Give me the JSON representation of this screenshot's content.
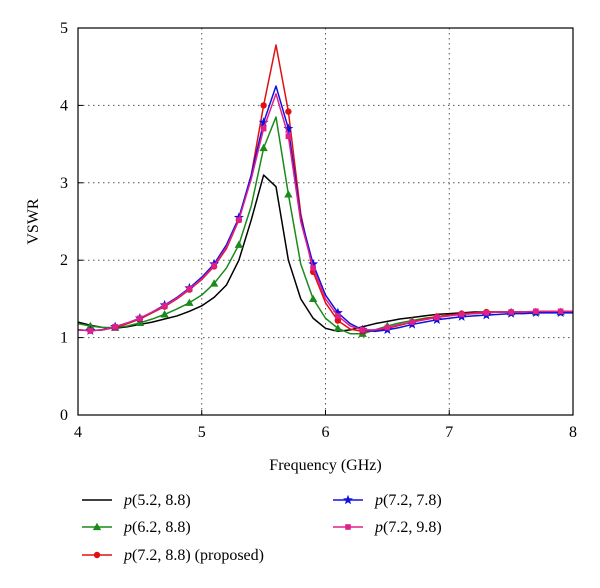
{
  "chart_data": {
    "type": "line",
    "xlabel": "Frequency (GHz)",
    "ylabel": "VSWR",
    "xlim": [
      4,
      8
    ],
    "ylim": [
      0,
      5
    ],
    "x_ticks": [
      4,
      5,
      6,
      7,
      8
    ],
    "y_ticks": [
      0,
      1,
      2,
      3,
      4,
      5
    ],
    "grid": true,
    "legend_position": "bottom",
    "series": [
      {
        "name_prefix": "p",
        "name": "(5.2, 8.8)",
        "color": "#000000",
        "marker": "none",
        "x": [
          4.0,
          4.1,
          4.2,
          4.3,
          4.4,
          4.5,
          4.6,
          4.7,
          4.8,
          4.9,
          5.0,
          5.1,
          5.2,
          5.3,
          5.4,
          5.5,
          5.6,
          5.7,
          5.8,
          5.9,
          6.0,
          6.1,
          6.2,
          6.3,
          6.4,
          6.5,
          6.6,
          6.7,
          6.8,
          6.9,
          7.0,
          7.1,
          7.2,
          7.3,
          7.4,
          7.5,
          7.6,
          7.7,
          7.8,
          7.9,
          8.0
        ],
        "y": [
          1.2,
          1.16,
          1.13,
          1.12,
          1.14,
          1.17,
          1.2,
          1.24,
          1.28,
          1.34,
          1.41,
          1.52,
          1.68,
          2.0,
          2.52,
          3.1,
          2.95,
          2.0,
          1.5,
          1.25,
          1.12,
          1.08,
          1.1,
          1.14,
          1.18,
          1.21,
          1.24,
          1.26,
          1.28,
          1.3,
          1.31,
          1.32,
          1.33,
          1.33,
          1.33,
          1.33,
          1.33,
          1.33,
          1.33,
          1.33,
          1.33
        ]
      },
      {
        "name_prefix": "p",
        "name": "(6.2, 8.8)",
        "color": "#1a8a1a",
        "marker": "triangle",
        "x": [
          4.0,
          4.1,
          4.2,
          4.3,
          4.4,
          4.5,
          4.6,
          4.7,
          4.8,
          4.9,
          5.0,
          5.1,
          5.2,
          5.3,
          5.4,
          5.5,
          5.6,
          5.7,
          5.8,
          5.9,
          6.0,
          6.1,
          6.2,
          6.3,
          6.4,
          6.5,
          6.6,
          6.7,
          6.8,
          6.9,
          7.0,
          7.1,
          7.2,
          7.3,
          7.4,
          7.5,
          7.6,
          7.7,
          7.8,
          7.9,
          8.0
        ],
        "y": [
          1.18,
          1.15,
          1.13,
          1.13,
          1.15,
          1.19,
          1.24,
          1.3,
          1.37,
          1.45,
          1.55,
          1.7,
          1.9,
          2.2,
          2.7,
          3.45,
          3.85,
          2.85,
          1.95,
          1.5,
          1.25,
          1.12,
          1.05,
          1.05,
          1.1,
          1.15,
          1.19,
          1.22,
          1.25,
          1.27,
          1.29,
          1.3,
          1.31,
          1.32,
          1.33,
          1.33,
          1.33,
          1.33,
          1.33,
          1.33,
          1.33
        ]
      },
      {
        "name_prefix": "p",
        "name": "(7.2, 8.8) (proposed)",
        "color": "#e01010",
        "marker": "circle",
        "x": [
          4.0,
          4.1,
          4.2,
          4.3,
          4.4,
          4.5,
          4.6,
          4.7,
          4.8,
          4.9,
          5.0,
          5.1,
          5.2,
          5.3,
          5.4,
          5.5,
          5.6,
          5.7,
          5.8,
          5.9,
          6.0,
          6.1,
          6.2,
          6.3,
          6.4,
          6.5,
          6.6,
          6.7,
          6.8,
          6.9,
          7.0,
          7.1,
          7.2,
          7.3,
          7.4,
          7.5,
          7.6,
          7.7,
          7.8,
          7.9,
          8.0
        ],
        "y": [
          1.1,
          1.09,
          1.1,
          1.13,
          1.18,
          1.24,
          1.32,
          1.4,
          1.5,
          1.62,
          1.75,
          1.92,
          2.15,
          2.52,
          3.1,
          4.0,
          4.78,
          3.92,
          2.6,
          1.85,
          1.45,
          1.22,
          1.11,
          1.08,
          1.09,
          1.12,
          1.16,
          1.2,
          1.24,
          1.27,
          1.29,
          1.31,
          1.32,
          1.33,
          1.33,
          1.33,
          1.33,
          1.33,
          1.33,
          1.33,
          1.33
        ]
      },
      {
        "name_prefix": "p",
        "name": "(7.2, 7.8)",
        "color": "#1010e0",
        "marker": "star",
        "x": [
          4.0,
          4.1,
          4.2,
          4.3,
          4.4,
          4.5,
          4.6,
          4.7,
          4.8,
          4.9,
          5.0,
          5.1,
          5.2,
          5.3,
          5.4,
          5.5,
          5.6,
          5.7,
          5.8,
          5.9,
          6.0,
          6.1,
          6.2,
          6.3,
          6.4,
          6.5,
          6.6,
          6.7,
          6.8,
          6.9,
          7.0,
          7.1,
          7.2,
          7.3,
          7.4,
          7.5,
          7.6,
          7.7,
          7.8,
          7.9,
          8.0
        ],
        "y": [
          1.1,
          1.09,
          1.1,
          1.14,
          1.19,
          1.25,
          1.33,
          1.42,
          1.52,
          1.64,
          1.78,
          1.95,
          2.2,
          2.55,
          3.1,
          3.78,
          4.25,
          3.7,
          2.55,
          1.95,
          1.55,
          1.32,
          1.18,
          1.1,
          1.08,
          1.1,
          1.13,
          1.17,
          1.2,
          1.23,
          1.25,
          1.27,
          1.28,
          1.29,
          1.3,
          1.31,
          1.31,
          1.32,
          1.32,
          1.32,
          1.32
        ]
      },
      {
        "name_prefix": "p",
        "name": "(7.2, 9.8)",
        "color": "#e0208a",
        "marker": "square",
        "x": [
          4.0,
          4.1,
          4.2,
          4.3,
          4.4,
          4.5,
          4.6,
          4.7,
          4.8,
          4.9,
          5.0,
          5.1,
          5.2,
          5.3,
          5.4,
          5.5,
          5.6,
          5.7,
          5.8,
          5.9,
          6.0,
          6.1,
          6.2,
          6.3,
          6.4,
          6.5,
          6.6,
          6.7,
          6.8,
          6.9,
          7.0,
          7.1,
          7.2,
          7.3,
          7.4,
          7.5,
          7.6,
          7.7,
          7.8,
          7.9,
          8.0
        ],
        "y": [
          1.1,
          1.09,
          1.1,
          1.14,
          1.19,
          1.25,
          1.33,
          1.41,
          1.51,
          1.63,
          1.76,
          1.93,
          2.17,
          2.52,
          3.05,
          3.7,
          4.15,
          3.6,
          2.5,
          1.9,
          1.5,
          1.28,
          1.15,
          1.1,
          1.1,
          1.13,
          1.17,
          1.2,
          1.23,
          1.26,
          1.28,
          1.3,
          1.31,
          1.32,
          1.33,
          1.33,
          1.33,
          1.34,
          1.34,
          1.34,
          1.34
        ]
      }
    ]
  }
}
